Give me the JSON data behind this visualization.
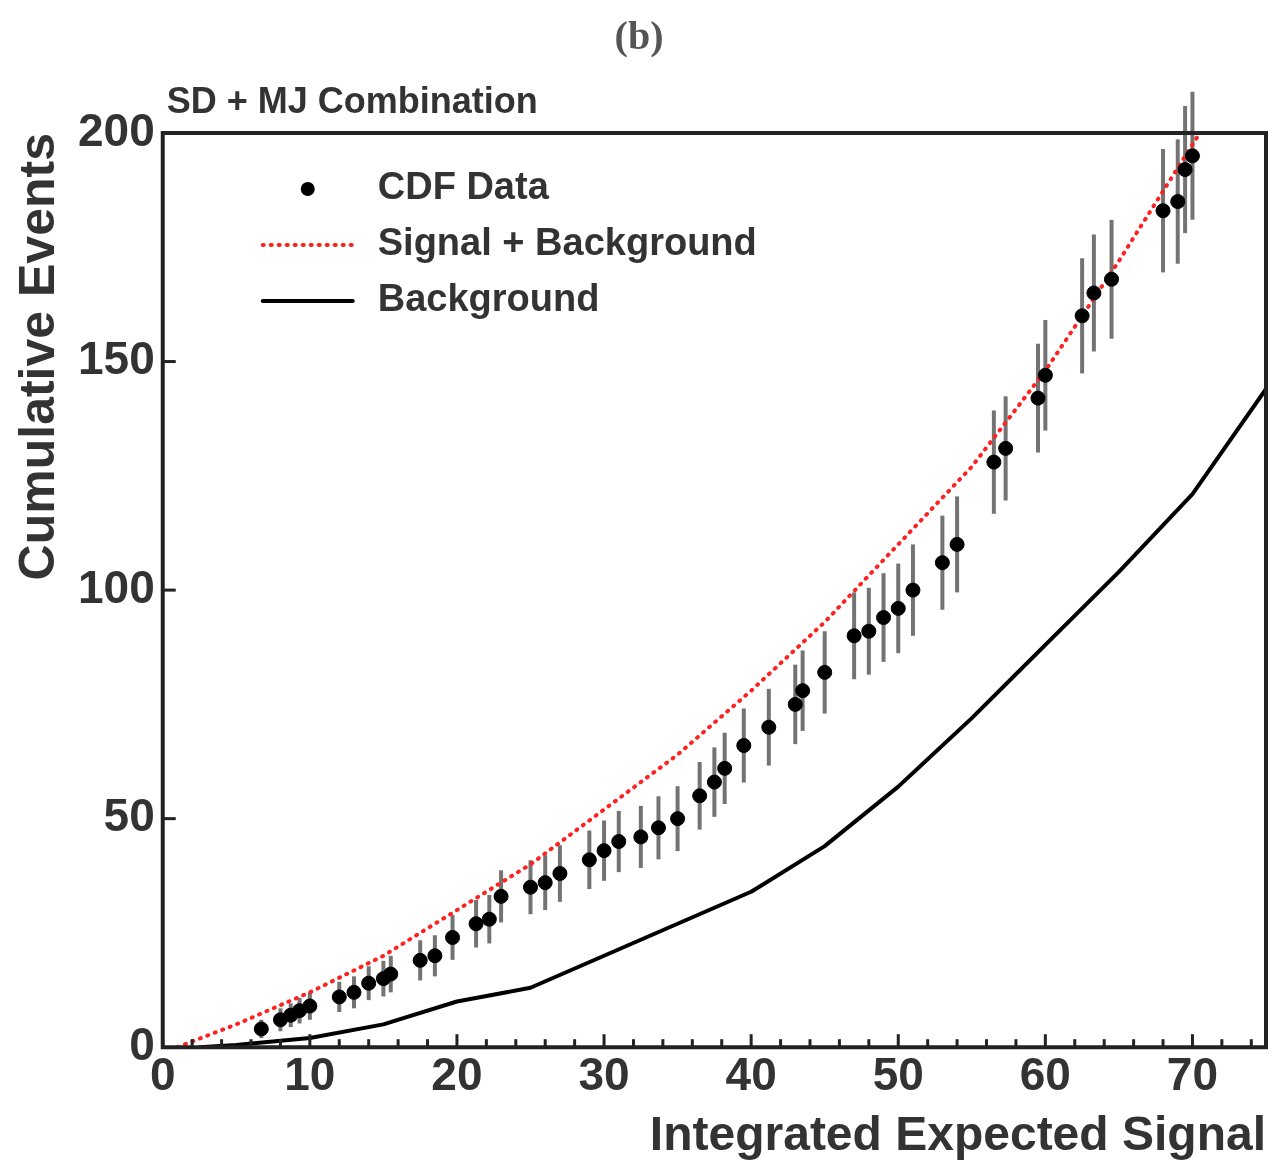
{
  "chart_data": {
    "type": "scatter",
    "title": "(b)",
    "subtitle": "SD + MJ Combination",
    "xlabel": "Integrated Expected Signal",
    "ylabel": "Cumulative Events",
    "xlim": [
      0,
      75
    ],
    "ylim": [
      0,
      200
    ],
    "xticks": [
      0,
      {
        "value": 2,
        "label": null
      },
      {
        "value": 4,
        "label": null
      },
      {
        "value": 6,
        "label": null
      },
      {
        "value": 8,
        "label": null
      },
      10,
      {
        "value": 12,
        "label": null
      },
      {
        "value": 14,
        "label": null
      },
      {
        "value": 16,
        "label": null
      },
      {
        "value": 18,
        "label": null
      },
      20,
      {
        "value": 22,
        "label": null
      },
      {
        "value": 24,
        "label": null
      },
      {
        "value": 26,
        "label": null
      },
      {
        "value": 28,
        "label": null
      },
      30,
      {
        "value": 32,
        "label": null
      },
      {
        "value": 34,
        "label": null
      },
      {
        "value": 36,
        "label": null
      },
      {
        "value": 38,
        "label": null
      },
      40,
      {
        "value": 42,
        "label": null
      },
      {
        "value": 44,
        "label": null
      },
      {
        "value": 46,
        "label": null
      },
      {
        "value": 48,
        "label": null
      },
      50,
      {
        "value": 52,
        "label": null
      },
      {
        "value": 54,
        "label": null
      },
      {
        "value": 56,
        "label": null
      },
      {
        "value": 58,
        "label": null
      },
      60,
      {
        "value": 62,
        "label": null
      },
      {
        "value": 64,
        "label": null
      },
      {
        "value": 66,
        "label": null
      },
      {
        "value": 68,
        "label": null
      },
      70,
      {
        "value": 72,
        "label": null
      },
      {
        "value": 74,
        "label": null
      }
    ],
    "yticks": [
      0,
      50,
      100,
      150,
      200
    ],
    "grid": false,
    "legend": "top left",
    "series": [
      {
        "name": "CDF Data",
        "type": "scatter",
        "marker": "circle",
        "color": "#000000",
        "x": [
          6.7,
          8,
          8.7,
          9.3,
          10,
          12,
          13,
          14,
          15,
          15.5,
          17.5,
          18.5,
          19.7,
          21.3,
          22.2,
          23,
          25,
          26,
          27,
          29,
          30,
          31,
          32.5,
          33.7,
          35,
          36.5,
          37.5,
          38.2,
          39.5,
          41.2,
          43,
          43.5,
          45,
          47,
          48,
          49,
          50,
          51,
          53,
          54,
          56.5,
          57.3,
          59.5,
          60,
          62.5,
          63.3,
          64.5,
          68,
          69,
          69.5,
          70
        ],
        "values": [
          4,
          6,
          7,
          8,
          9,
          11,
          12,
          14,
          15,
          16,
          19,
          20,
          24,
          27,
          28,
          33,
          35,
          36,
          38,
          41,
          43,
          45,
          46,
          48,
          50,
          55,
          58,
          61,
          66,
          70,
          75,
          78,
          82,
          90,
          91,
          94,
          96,
          100,
          106,
          110,
          128,
          131,
          142,
          147,
          160,
          165,
          168,
          183,
          185,
          192,
          195
        ],
        "errors": [
          2,
          2.5,
          2.6,
          2.8,
          3,
          3.3,
          3.5,
          3.7,
          3.9,
          4,
          4.4,
          4.5,
          4.9,
          5.2,
          5.3,
          5.7,
          5.9,
          6,
          6.2,
          6.4,
          6.6,
          6.7,
          6.8,
          6.9,
          7.1,
          7.4,
          7.6,
          7.8,
          8.1,
          8.4,
          8.7,
          8.8,
          9,
          9.5,
          9.5,
          9.7,
          9.8,
          10,
          10.3,
          10.5,
          11.3,
          11.4,
          11.9,
          12.1,
          12.6,
          12.8,
          13,
          13.5,
          13.6,
          13.9,
          14
        ]
      },
      {
        "name": "Signal + Background",
        "type": "line",
        "line_style": "dotted",
        "marker": "none",
        "color": "#ff2020",
        "x": [
          1,
          5,
          10,
          15,
          20,
          25,
          30,
          35,
          40,
          45,
          50,
          55,
          60,
          65,
          70.5
        ],
        "values": [
          0,
          5,
          12,
          20,
          30,
          40,
          52,
          64,
          78,
          93,
          110,
          127,
          148,
          172,
          200
        ]
      },
      {
        "name": "Background",
        "type": "line",
        "line_style": "solid",
        "marker": "none",
        "color": "#000000",
        "x": [
          2.5,
          5,
          10,
          15,
          20,
          25,
          30,
          35,
          40,
          45,
          50,
          55,
          60,
          65,
          70,
          75
        ],
        "values": [
          0,
          0.5,
          2,
          5,
          10,
          13,
          20,
          27,
          34,
          44,
          57,
          72,
          88,
          104,
          121,
          144
        ]
      }
    ]
  }
}
